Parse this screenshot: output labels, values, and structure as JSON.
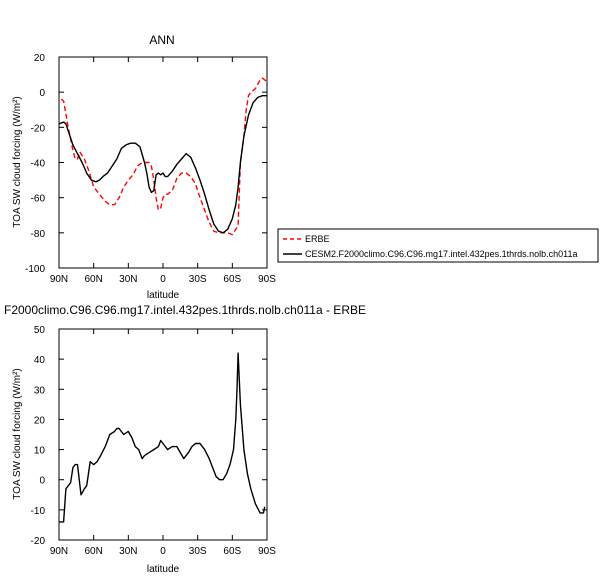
{
  "chart_data": [
    {
      "type": "line",
      "title": "ANN",
      "xlabel": "latitude",
      "ylabel": "TOA SW cloud forcing (W/m²)",
      "xlim": [
        90,
        -90
      ],
      "ylim": [
        -100,
        20
      ],
      "x_ticks": [
        90,
        60,
        30,
        0,
        -30,
        -60,
        -90
      ],
      "x_tick_labels": [
        "90N",
        "60N",
        "30N",
        "0",
        "30S",
        "60S",
        "90S"
      ],
      "y_ticks": [
        -100,
        -80,
        -60,
        -40,
        -20,
        0,
        20
      ],
      "y_tick_labels": [
        "-100",
        "-80",
        "-60",
        "-40",
        "-20",
        "0",
        "20"
      ],
      "legend": {
        "placement": "outside-right"
      },
      "series": [
        {
          "name": "ERBE",
          "color": "#ff0000",
          "style": "dashed",
          "x": [
            88,
            86,
            82,
            78,
            76,
            74,
            72,
            68,
            64,
            60,
            55,
            50,
            46,
            42,
            38,
            34,
            30,
            26,
            22,
            18,
            14,
            12,
            10,
            8,
            6,
            4,
            2,
            0,
            -2,
            -4,
            -8,
            -12,
            -16,
            -20,
            -24,
            -28,
            -32,
            -36,
            -40,
            -44,
            -48,
            -52,
            -56,
            -60,
            -63,
            -65,
            -67,
            -70,
            -72,
            -74,
            -76,
            -80,
            -84,
            -86,
            -88,
            -90
          ],
          "y": [
            -4,
            -5,
            -20,
            -33,
            -38,
            -38,
            -34,
            -38,
            -45,
            -54,
            -58,
            -62,
            -64,
            -64,
            -60,
            -54,
            -50,
            -47,
            -42,
            -40,
            -40,
            -40,
            -42,
            -50,
            -60,
            -67,
            -66,
            -60,
            -58,
            -58,
            -56,
            -49,
            -46,
            -46,
            -48,
            -52,
            -60,
            -67,
            -74,
            -79,
            -80,
            -80,
            -80,
            -81,
            -78,
            -76,
            -40,
            -25,
            -10,
            -2,
            0,
            2,
            7,
            8,
            7,
            6
          ]
        },
        {
          "name": "CESM2.F2000climo.C96.C96.mg17.intel.432pes.1thrds.nolb.ch011a",
          "color": "#000000",
          "style": "solid",
          "x": [
            90,
            86,
            84,
            82,
            78,
            74,
            70,
            66,
            62,
            58,
            55,
            52,
            48,
            44,
            40,
            36,
            32,
            28,
            24,
            20,
            16,
            14,
            12,
            10,
            8,
            6,
            4,
            2,
            0,
            -2,
            -4,
            -8,
            -12,
            -16,
            -20,
            -24,
            -28,
            -32,
            -36,
            -40,
            -44,
            -48,
            -52,
            -56,
            -60,
            -63,
            -65,
            -67,
            -70,
            -74,
            -78,
            -82,
            -86,
            -90
          ],
          "y": [
            -18,
            -17,
            -18,
            -22,
            -30,
            -35,
            -40,
            -46,
            -50,
            -51,
            -50,
            -48,
            -46,
            -42,
            -38,
            -32,
            -30,
            -29,
            -29,
            -31,
            -40,
            -46,
            -54,
            -57,
            -56,
            -47,
            -46,
            -47,
            -46,
            -48,
            -48,
            -45,
            -41,
            -38,
            -35,
            -37,
            -43,
            -50,
            -58,
            -67,
            -75,
            -79,
            -80,
            -78,
            -72,
            -64,
            -54,
            -40,
            -25,
            -13,
            -6,
            -3,
            -2,
            -2
          ]
        }
      ]
    },
    {
      "type": "line",
      "title": "F2000climo.C96.C96.mg17.intel.432pes.1thrds.nolb.ch011a - ERBE",
      "xlabel": "latitude",
      "ylabel": "TOA SW cloud forcing (W/m²)",
      "xlim": [
        90,
        -90
      ],
      "ylim": [
        -20,
        50
      ],
      "x_ticks": [
        90,
        60,
        30,
        0,
        -30,
        -60,
        -90
      ],
      "x_tick_labels": [
        "90N",
        "60N",
        "30N",
        "0",
        "30S",
        "60S",
        "90S"
      ],
      "y_ticks": [
        -20,
        -10,
        0,
        10,
        20,
        30,
        40,
        50
      ],
      "y_tick_labels": [
        "-20",
        "-10",
        "0",
        "10",
        "20",
        "30",
        "40",
        "50"
      ],
      "series": [
        {
          "color": "#000000",
          "style": "solid",
          "x": [
            90,
            88,
            86,
            84,
            80,
            78,
            76,
            74,
            71,
            68,
            66,
            63,
            60,
            57,
            54,
            50,
            46,
            42,
            40,
            38,
            34,
            30,
            27,
            24,
            21,
            18,
            16,
            12,
            8,
            4,
            2,
            0,
            -2,
            -4,
            -8,
            -12,
            -15,
            -18,
            -22,
            -25,
            -28,
            -32,
            -36,
            -40,
            -43,
            -46,
            -49,
            -52,
            -55,
            -58,
            -61,
            -63,
            -64,
            -65,
            -67,
            -70,
            -73,
            -76,
            -80,
            -84,
            -87,
            -88
          ],
          "y": [
            -14,
            -14,
            -14,
            -3,
            -1,
            4,
            5,
            5,
            -5,
            -3,
            -2,
            6,
            5,
            6,
            8,
            11,
            15,
            16,
            17,
            17,
            15,
            16,
            14,
            11,
            10,
            7,
            8,
            9,
            10,
            11,
            13,
            12,
            11,
            10,
            11,
            11,
            9,
            7,
            9,
            11,
            12,
            12,
            10,
            7,
            4,
            1,
            0,
            0,
            2,
            5,
            10,
            20,
            30,
            42,
            25,
            10,
            2,
            -3,
            -8,
            -11,
            -11,
            -9
          ]
        }
      ]
    }
  ]
}
